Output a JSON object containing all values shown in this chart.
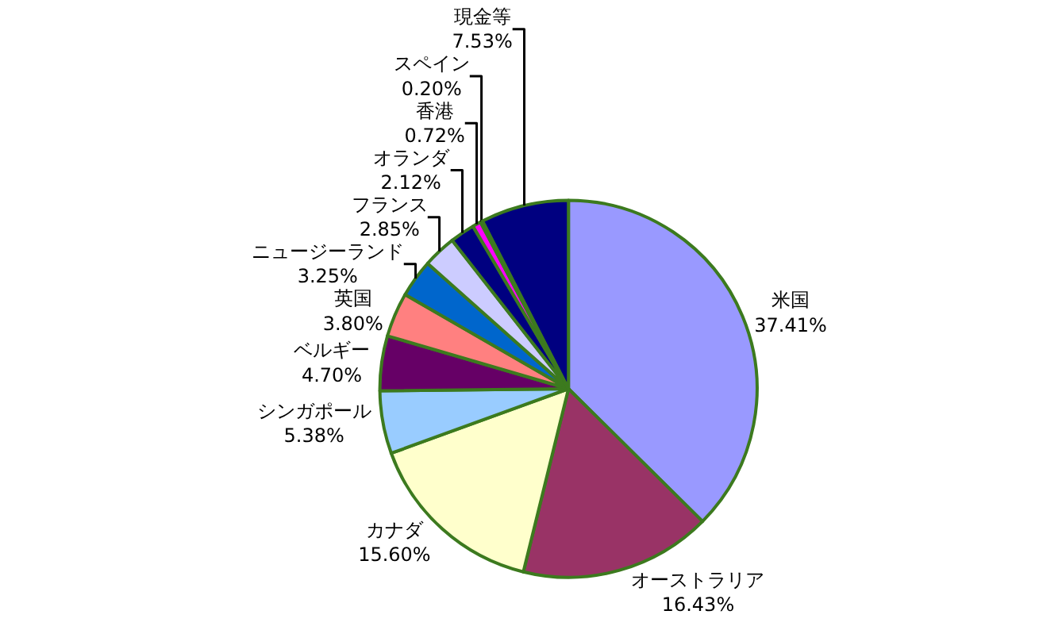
{
  "chart_data": {
    "type": "pie",
    "categories": [
      "米国",
      "オーストラリア",
      "カナダ",
      "シンガポール",
      "ベルギー",
      "英国",
      "ニュージーランド",
      "フランス",
      "オランダ",
      "香港",
      "スペイン",
      "現金等"
    ],
    "values": [
      37.41,
      16.43,
      15.6,
      5.38,
      4.7,
      3.8,
      3.25,
      2.85,
      2.12,
      0.72,
      0.2,
      7.53
    ],
    "value_labels": [
      "37.41%",
      "16.43%",
      "15.60%",
      "5.38%",
      "4.70%",
      "3.80%",
      "3.25%",
      "2.85%",
      "2.12%",
      "0.72%",
      "0.20%",
      "7.53%"
    ],
    "colors": [
      "#9999ff",
      "#993366",
      "#ffffcc",
      "#99ccff",
      "#660066",
      "#ff8080",
      "#0066cc",
      "#ccccff",
      "#000080",
      "#ff00ff",
      "#3c7a1e",
      "#000080"
    ]
  }
}
